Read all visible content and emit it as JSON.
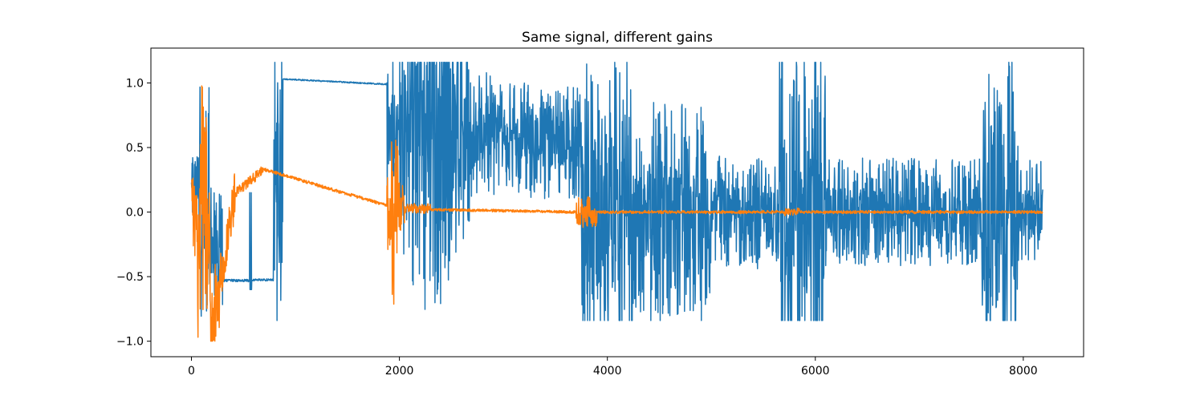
{
  "chart_data": {
    "type": "line",
    "title": "Same signal, different gains",
    "xlabel": "",
    "ylabel": "",
    "xlim": [
      -390,
      8580
    ],
    "ylim": [
      -1.12,
      1.27
    ],
    "xticks": [
      0,
      2000,
      4000,
      6000,
      8000
    ],
    "xtick_labels": [
      "0",
      "2000",
      "4000",
      "6000",
      "8000"
    ],
    "yticks": [
      -1.0,
      -0.5,
      0.0,
      0.5,
      1.0
    ],
    "ytick_labels": [
      "−1.0",
      "−0.5",
      "0.0",
      "0.5",
      "1.0"
    ],
    "grid": false,
    "legend": "none",
    "x_range": [
      0,
      8190
    ],
    "series": [
      {
        "color": "#1f77b4",
        "clip": [
          -0.84,
          1.16
        ],
        "segments": [
          {
            "from": 0,
            "to": 70,
            "kind": "noise",
            "center": 0.15,
            "amp": 0.3
          },
          {
            "from": 70,
            "to": 170,
            "kind": "noise",
            "center": 0.1,
            "amp": 1.0
          },
          {
            "from": 170,
            "to": 300,
            "kind": "noise",
            "center": -0.3,
            "amp": 0.5
          },
          {
            "from": 300,
            "to": 560,
            "kind": "flat",
            "center": -0.53,
            "amp": 0.01
          },
          {
            "from": 560,
            "to": 580,
            "kind": "spike",
            "center": -0.55,
            "amp": 0.7
          },
          {
            "from": 580,
            "to": 790,
            "kind": "flat",
            "center": -0.525,
            "amp": 0.008
          },
          {
            "from": 790,
            "to": 880,
            "kind": "noise",
            "center": 0.2,
            "amp": 1.2
          },
          {
            "from": 880,
            "to": 1880,
            "kind": "decay",
            "start": 1.03,
            "end": 0.99,
            "amp": 0.005
          },
          {
            "from": 1880,
            "to": 2950,
            "kind": "burst",
            "center": 0.6,
            "amp": 1.4
          },
          {
            "from": 2950,
            "to": 3750,
            "kind": "noise",
            "center": 0.55,
            "amp": 0.45
          },
          {
            "from": 3750,
            "to": 4250,
            "kind": "noise",
            "center": 0.0,
            "amp": 1.3
          },
          {
            "from": 4250,
            "to": 5000,
            "kind": "noise",
            "center": 0.0,
            "amp": 0.85
          },
          {
            "from": 5000,
            "to": 5650,
            "kind": "noise",
            "center": 0.0,
            "amp": 0.45
          },
          {
            "from": 5650,
            "to": 6100,
            "kind": "noise",
            "center": 0.0,
            "amp": 1.3
          },
          {
            "from": 6100,
            "to": 7600,
            "kind": "noise",
            "center": 0.0,
            "amp": 0.42
          },
          {
            "from": 7600,
            "to": 7950,
            "kind": "noise",
            "center": 0.0,
            "amp": 1.25
          },
          {
            "from": 7950,
            "to": 8190,
            "kind": "noise",
            "center": 0.0,
            "amp": 0.4
          }
        ]
      },
      {
        "color": "#ff7f0e",
        "clip": [
          -1.0,
          1.0
        ],
        "segments": [
          {
            "from": 0,
            "to": 60,
            "kind": "noise",
            "center": 0.0,
            "amp": 0.35
          },
          {
            "from": 60,
            "to": 180,
            "kind": "noise",
            "center": 0.0,
            "amp": 1.0
          },
          {
            "from": 180,
            "to": 270,
            "kind": "noise",
            "center": -0.75,
            "amp": 0.35
          },
          {
            "from": 270,
            "to": 420,
            "kind": "rise",
            "start": -0.55,
            "end": 0.15,
            "amp": 0.18
          },
          {
            "from": 420,
            "to": 700,
            "kind": "rise",
            "start": 0.15,
            "end": 0.33,
            "amp": 0.04
          },
          {
            "from": 700,
            "to": 1880,
            "kind": "decay",
            "start": 0.33,
            "end": 0.05,
            "amp": 0.012
          },
          {
            "from": 1880,
            "to": 2050,
            "kind": "burst",
            "center": 0.0,
            "amp": 0.72
          },
          {
            "from": 2050,
            "to": 2300,
            "kind": "noise",
            "center": 0.03,
            "amp": 0.04
          },
          {
            "from": 2300,
            "to": 3700,
            "kind": "decay",
            "start": 0.02,
            "end": 0.0,
            "amp": 0.01
          },
          {
            "from": 3700,
            "to": 3900,
            "kind": "noise",
            "center": 0.0,
            "amp": 0.12
          },
          {
            "from": 3900,
            "to": 5700,
            "kind": "noise",
            "center": 0.0,
            "amp": 0.012
          },
          {
            "from": 5700,
            "to": 5850,
            "kind": "noise",
            "center": 0.0,
            "amp": 0.03
          },
          {
            "from": 5850,
            "to": 8190,
            "kind": "noise",
            "center": 0.0,
            "amp": 0.012
          }
        ]
      }
    ]
  }
}
